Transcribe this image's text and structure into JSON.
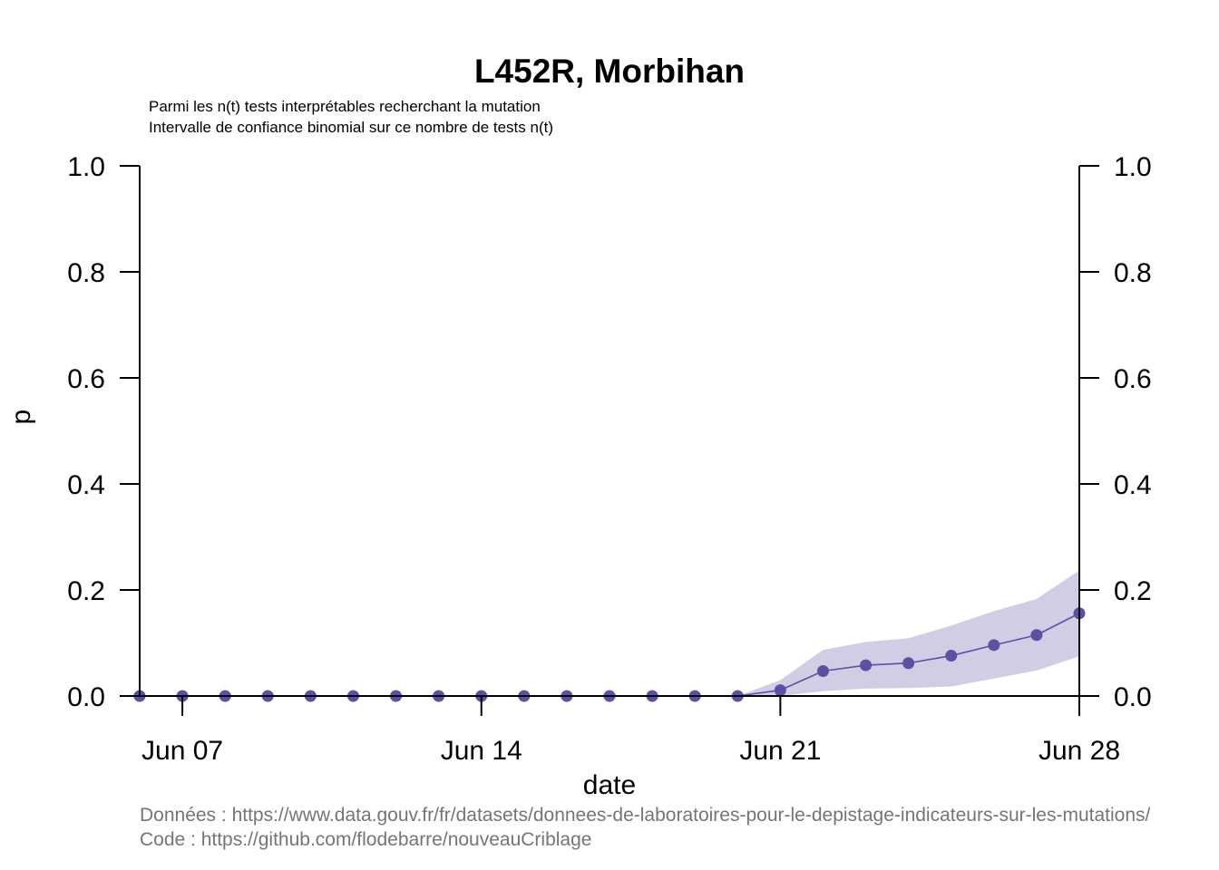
{
  "chart_data": {
    "type": "line",
    "title": "L452R, Morbihan",
    "subtitle_lines": [
      "Parmi les n(t) tests interprétables recherchant la mutation",
      "Intervalle de confiance binomial sur ce nombre de tests n(t)"
    ],
    "xlabel": "date",
    "ylabel": "p",
    "x_tick_labels": [
      {
        "date": "2021-06-07",
        "label": "Jun 07"
      },
      {
        "date": "2021-06-14",
        "label": "Jun 14"
      },
      {
        "date": "2021-06-21",
        "label": "Jun 21"
      },
      {
        "date": "2021-06-28",
        "label": "Jun 28"
      }
    ],
    "y_ticks": [
      0.0,
      0.2,
      0.4,
      0.6,
      0.8,
      1.0
    ],
    "y_tick_labels": [
      "0.0",
      "0.2",
      "0.4",
      "0.6",
      "0.8",
      "1.0"
    ],
    "xlim": [
      "2021-06-06",
      "2021-06-28"
    ],
    "ylim": [
      0,
      1
    ],
    "grid": false,
    "right_axis": true,
    "colors": {
      "line": "#5e4fa2",
      "ci_fill": "#d0cde5"
    },
    "series": [
      {
        "x": [
          "2021-06-06",
          "2021-06-07",
          "2021-06-08",
          "2021-06-09",
          "2021-06-10",
          "2021-06-11",
          "2021-06-12",
          "2021-06-13",
          "2021-06-14",
          "2021-06-15",
          "2021-06-16",
          "2021-06-17",
          "2021-06-18",
          "2021-06-19",
          "2021-06-20",
          "2021-06-21",
          "2021-06-22",
          "2021-06-23",
          "2021-06-24",
          "2021-06-25",
          "2021-06-26",
          "2021-06-27",
          "2021-06-28"
        ],
        "values": [
          0.0,
          0.0,
          0.0,
          0.0,
          0.0,
          0.0,
          0.0,
          0.0,
          0.0,
          0.0,
          0.0,
          0.0,
          0.0,
          0.0,
          0.0,
          0.011,
          0.047,
          0.058,
          0.062,
          0.076,
          0.096,
          0.115,
          0.156
        ],
        "ci_lower": [
          0.0,
          0.0,
          0.0,
          0.0,
          0.0,
          0.0,
          0.0,
          0.0,
          0.0,
          0.0,
          0.0,
          0.0,
          0.0,
          0.0,
          0.0,
          0.0,
          0.009,
          0.014,
          0.015,
          0.018,
          0.033,
          0.048,
          0.075
        ],
        "ci_upper": [
          0.0,
          0.0,
          0.0,
          0.0,
          0.0,
          0.0,
          0.0,
          0.0,
          0.0,
          0.0,
          0.0,
          0.0,
          0.0,
          0.0,
          0.0,
          0.03,
          0.087,
          0.102,
          0.109,
          0.133,
          0.16,
          0.183,
          0.237
        ]
      }
    ]
  },
  "credits": {
    "data_line": "Données : https://www.data.gouv.fr/fr/datasets/donnees-de-laboratoires-pour-le-depistage-indicateurs-sur-les-mutations/",
    "code_line": "Code : https://github.com/flodebarre/nouveauCriblage"
  }
}
